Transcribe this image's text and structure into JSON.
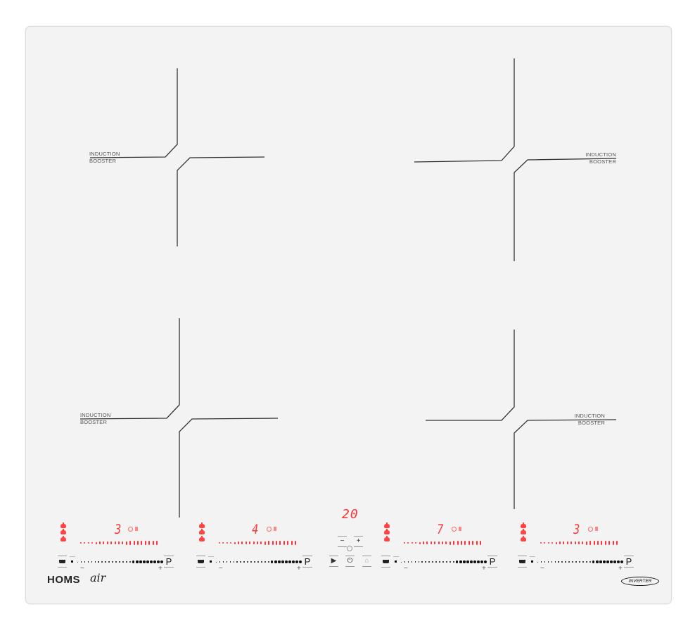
{
  "zone_labels": {
    "line1": "INDUCTION",
    "line2": "BOOSTER"
  },
  "zones": [
    {
      "display": "3",
      "power_level": 3
    },
    {
      "display": "4",
      "power_level": 4
    },
    {
      "display": "7",
      "power_level": 7
    },
    {
      "display": "3",
      "power_level": 3
    }
  ],
  "slider": {
    "p_label": "P",
    "minus": "−",
    "plus": "+"
  },
  "timer": {
    "display": "20",
    "minus": "−",
    "plus": "+"
  },
  "center_buttons": {
    "play": "▶",
    "power": "⏻",
    "lock": "⌂"
  },
  "brand": {
    "name": "HOMS",
    "sub": "air"
  },
  "inverter_badge": "INVERTER",
  "colors": {
    "display_red": "#ff3333",
    "glass": "#f3f3f3"
  }
}
